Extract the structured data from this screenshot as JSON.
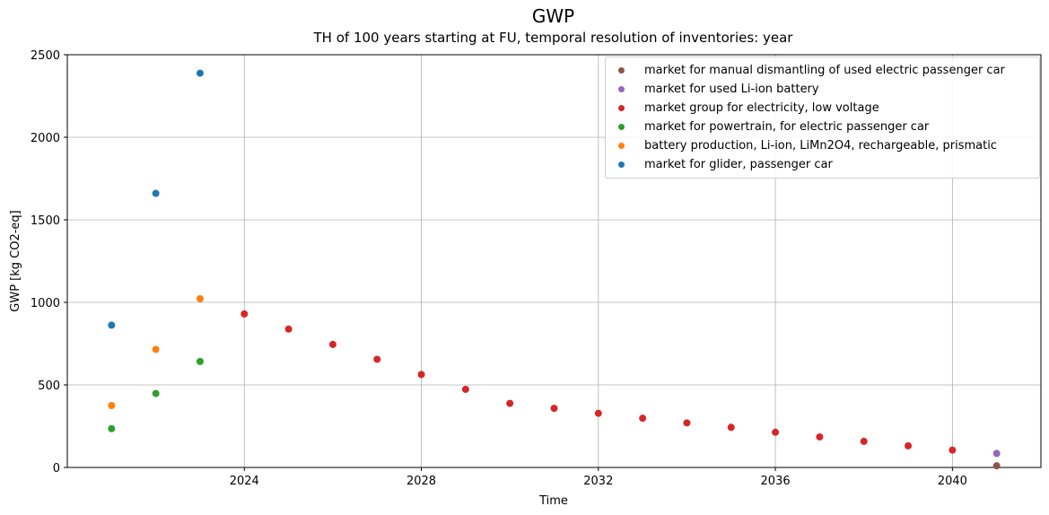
{
  "chart_data": {
    "type": "scatter",
    "title": "GWP",
    "subtitle": "TH of 100 years starting at FU, temporal resolution of inventories: year",
    "xlabel": "Time",
    "ylabel": "GWP [kg CO2-eq]",
    "xlim": [
      2020.0,
      2042.0
    ],
    "ylim": [
      0,
      2500
    ],
    "xticks": [
      2024,
      2028,
      2032,
      2036,
      2040
    ],
    "yticks": [
      0,
      500,
      1000,
      1500,
      2000,
      2500
    ],
    "grid": true,
    "legend_position": "top-right",
    "series": [
      {
        "name": "market for manual dismantling of used electric passenger car",
        "color": "#8c564b",
        "x": [
          2041
        ],
        "y": [
          10
        ]
      },
      {
        "name": "market for used Li-ion battery",
        "color": "#9467bd",
        "x": [
          2041
        ],
        "y": [
          85
        ]
      },
      {
        "name": "market group for electricity, low voltage",
        "color": "#d62728",
        "x": [
          2024,
          2025,
          2026,
          2027,
          2028,
          2029,
          2030,
          2031,
          2032,
          2033,
          2034,
          2035,
          2036,
          2037,
          2038,
          2039,
          2040
        ],
        "y": [
          930,
          838,
          745,
          655,
          563,
          473,
          388,
          358,
          328,
          298,
          270,
          243,
          213,
          185,
          158,
          131,
          105
        ]
      },
      {
        "name": "market for powertrain, for electric passenger car",
        "color": "#2ca02c",
        "x": [
          2021,
          2022,
          2023
        ],
        "y": [
          235,
          448,
          642
        ]
      },
      {
        "name": "battery production, Li-ion, LiMn2O4, rechargeable, prismatic",
        "color": "#ff7f0e",
        "x": [
          2021,
          2022,
          2023
        ],
        "y": [
          375,
          715,
          1022
        ]
      },
      {
        "name": "market for glider, passenger car",
        "color": "#1f77b4",
        "x": [
          2021,
          2022,
          2023
        ],
        "y": [
          862,
          1660,
          2388
        ]
      }
    ]
  }
}
